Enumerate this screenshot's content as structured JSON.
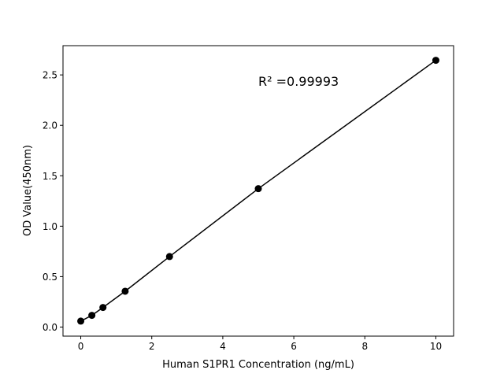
{
  "chart_data": {
    "type": "scatter",
    "title": "",
    "xlabel": "Human S1PR1 Concentration (ng/mL)",
    "ylabel": "OD Value(450nm)",
    "xlim": [
      -0.5,
      10.5
    ],
    "ylim": [
      -0.09,
      2.79
    ],
    "xticks": [
      0,
      2,
      4,
      6,
      8,
      10
    ],
    "xtick_labels": [
      "0",
      "2",
      "4",
      "6",
      "8",
      "10"
    ],
    "yticks": [
      0.0,
      0.5,
      1.0,
      1.5,
      2.0,
      2.5
    ],
    "ytick_labels": [
      "0.0",
      "0.5",
      "1.0",
      "1.5",
      "2.0",
      "2.5"
    ],
    "grid": false,
    "annotation": "R² =0.99993",
    "series": [
      {
        "x": [
          0,
          0.3125,
          0.625,
          1.25,
          2.5,
          5,
          10
        ],
        "y": [
          0.059,
          0.116,
          0.194,
          0.355,
          0.699,
          1.372,
          2.645
        ],
        "color": "#000000",
        "marker": "circle",
        "line": true
      }
    ]
  }
}
